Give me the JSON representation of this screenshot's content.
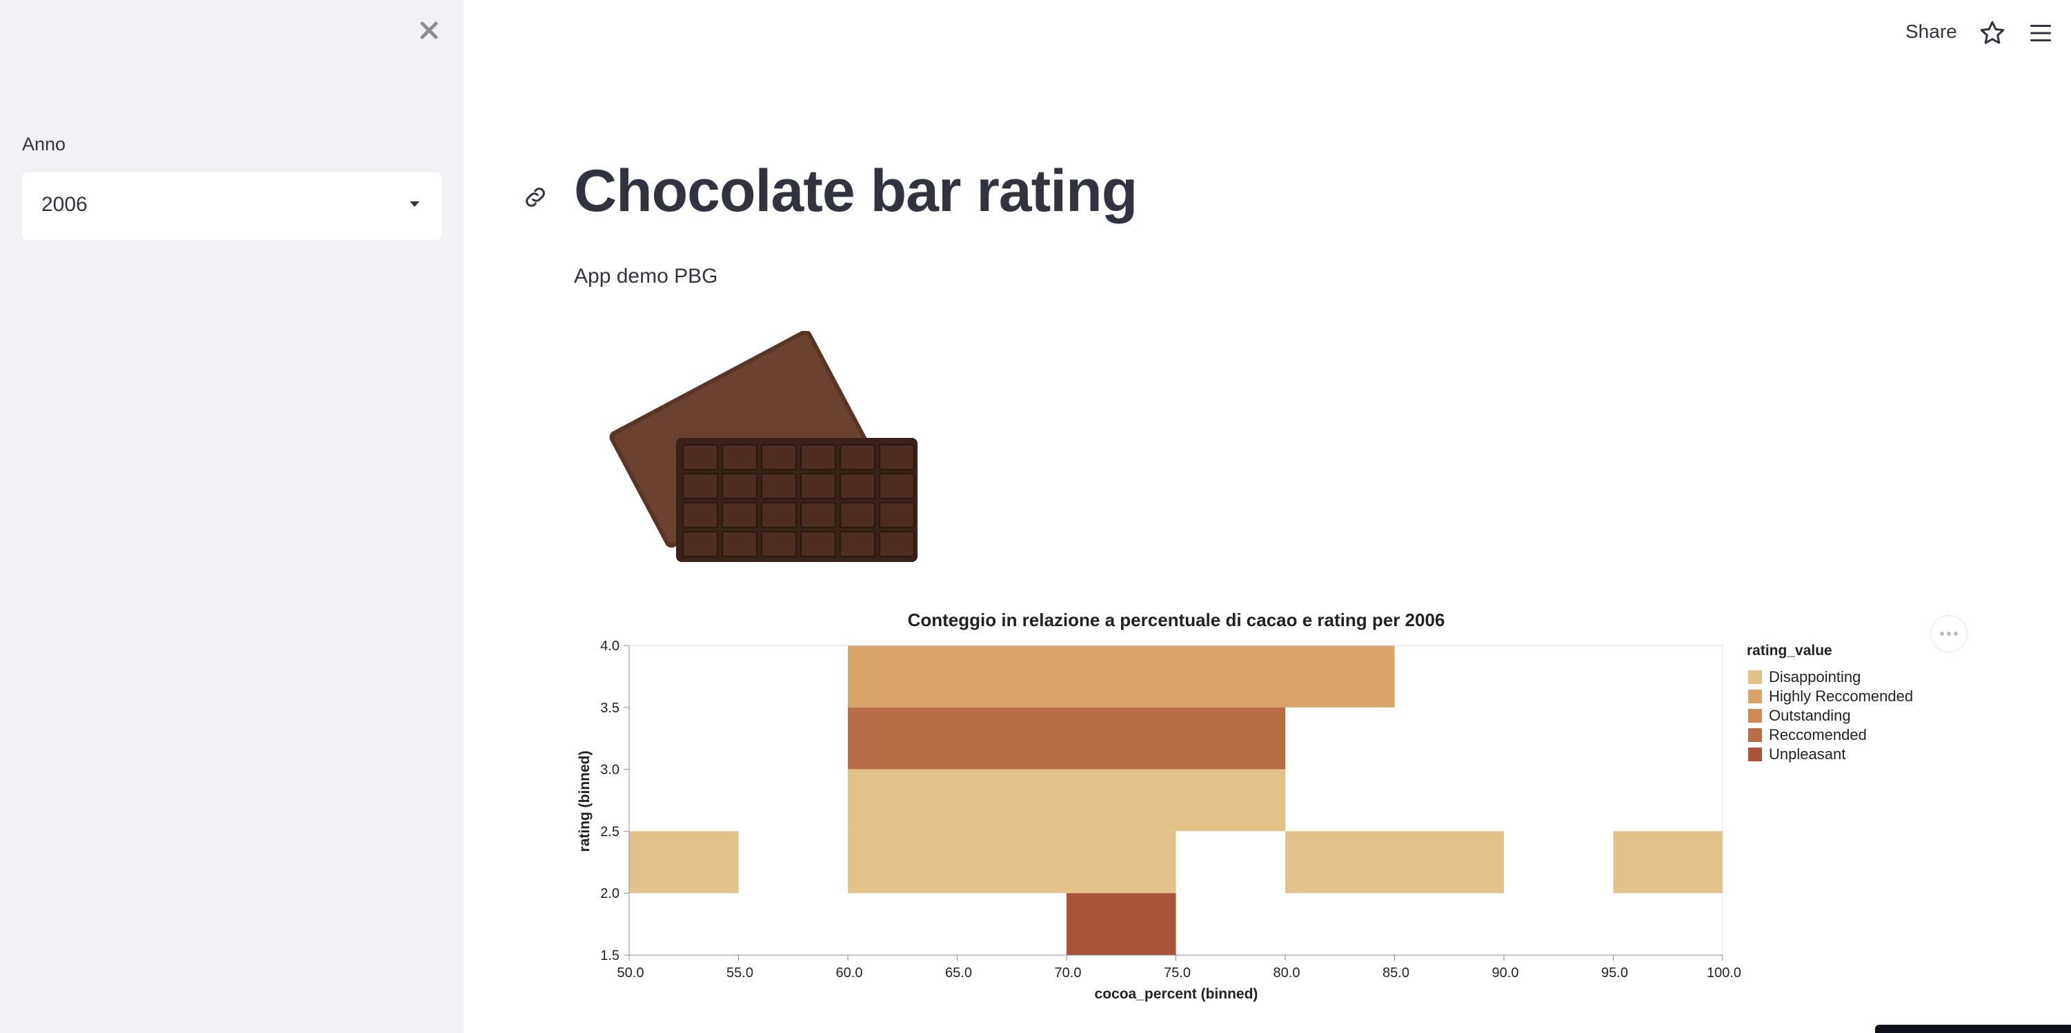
{
  "sidebar": {
    "close_icon": "close-icon",
    "year_label": "Anno",
    "year_value": "2006"
  },
  "header": {
    "share_label": "Share",
    "star_icon": "star-icon",
    "menu_icon": "hamburger-menu-icon"
  },
  "main": {
    "title": "Chocolate bar rating",
    "subtitle": "App demo PBG",
    "image": "chocolate-bar-image"
  },
  "chart_data": {
    "type": "heatmap",
    "title": "Conteggio in relazione a percentuale di cacao e rating per 2006",
    "xlabel": "cocoa_percent (binned)",
    "ylabel": "rating (binned)",
    "xlim": [
      50,
      100
    ],
    "ylim": [
      1.5,
      4
    ],
    "x_ticks": [
      "50.0",
      "55.0",
      "60.0",
      "65.0",
      "70.0",
      "75.0",
      "80.0",
      "85.0",
      "90.0",
      "95.0",
      "100.0"
    ],
    "y_ticks": [
      "1.5",
      "2.0",
      "2.5",
      "3.0",
      "3.5",
      "4.0"
    ],
    "legend_title": "rating_value",
    "legend_position": "right",
    "categories": [
      {
        "name": "Disappointing",
        "color": "#e3c28a"
      },
      {
        "name": "Highly Reccomended",
        "color": "#d8a46a"
      },
      {
        "name": "Outstanding",
        "color": "#cc8a55"
      },
      {
        "name": "Reccomended",
        "color": "#b96d47"
      },
      {
        "name": "Unpleasant",
        "color": "#a8533a"
      }
    ],
    "cells": [
      {
        "x0": 60,
        "x1": 85,
        "y0": 3.5,
        "y1": 4.0,
        "category": "Highly Reccomended"
      },
      {
        "x0": 60,
        "x1": 80,
        "y0": 3.0,
        "y1": 3.5,
        "category": "Reccomended"
      },
      {
        "x0": 60,
        "x1": 80,
        "y0": 2.5,
        "y1": 3.0,
        "category": "Disappointing"
      },
      {
        "x0": 50,
        "x1": 55,
        "y0": 2.0,
        "y1": 2.5,
        "category": "Disappointing"
      },
      {
        "x0": 60,
        "x1": 75,
        "y0": 2.0,
        "y1": 2.5,
        "category": "Disappointing"
      },
      {
        "x0": 80,
        "x1": 90,
        "y0": 2.0,
        "y1": 2.5,
        "category": "Disappointing"
      },
      {
        "x0": 95,
        "x1": 100,
        "y0": 2.0,
        "y1": 2.5,
        "category": "Disappointing"
      },
      {
        "x0": 70,
        "x1": 75,
        "y0": 1.5,
        "y1": 2.0,
        "category": "Unpleasant"
      }
    ]
  }
}
